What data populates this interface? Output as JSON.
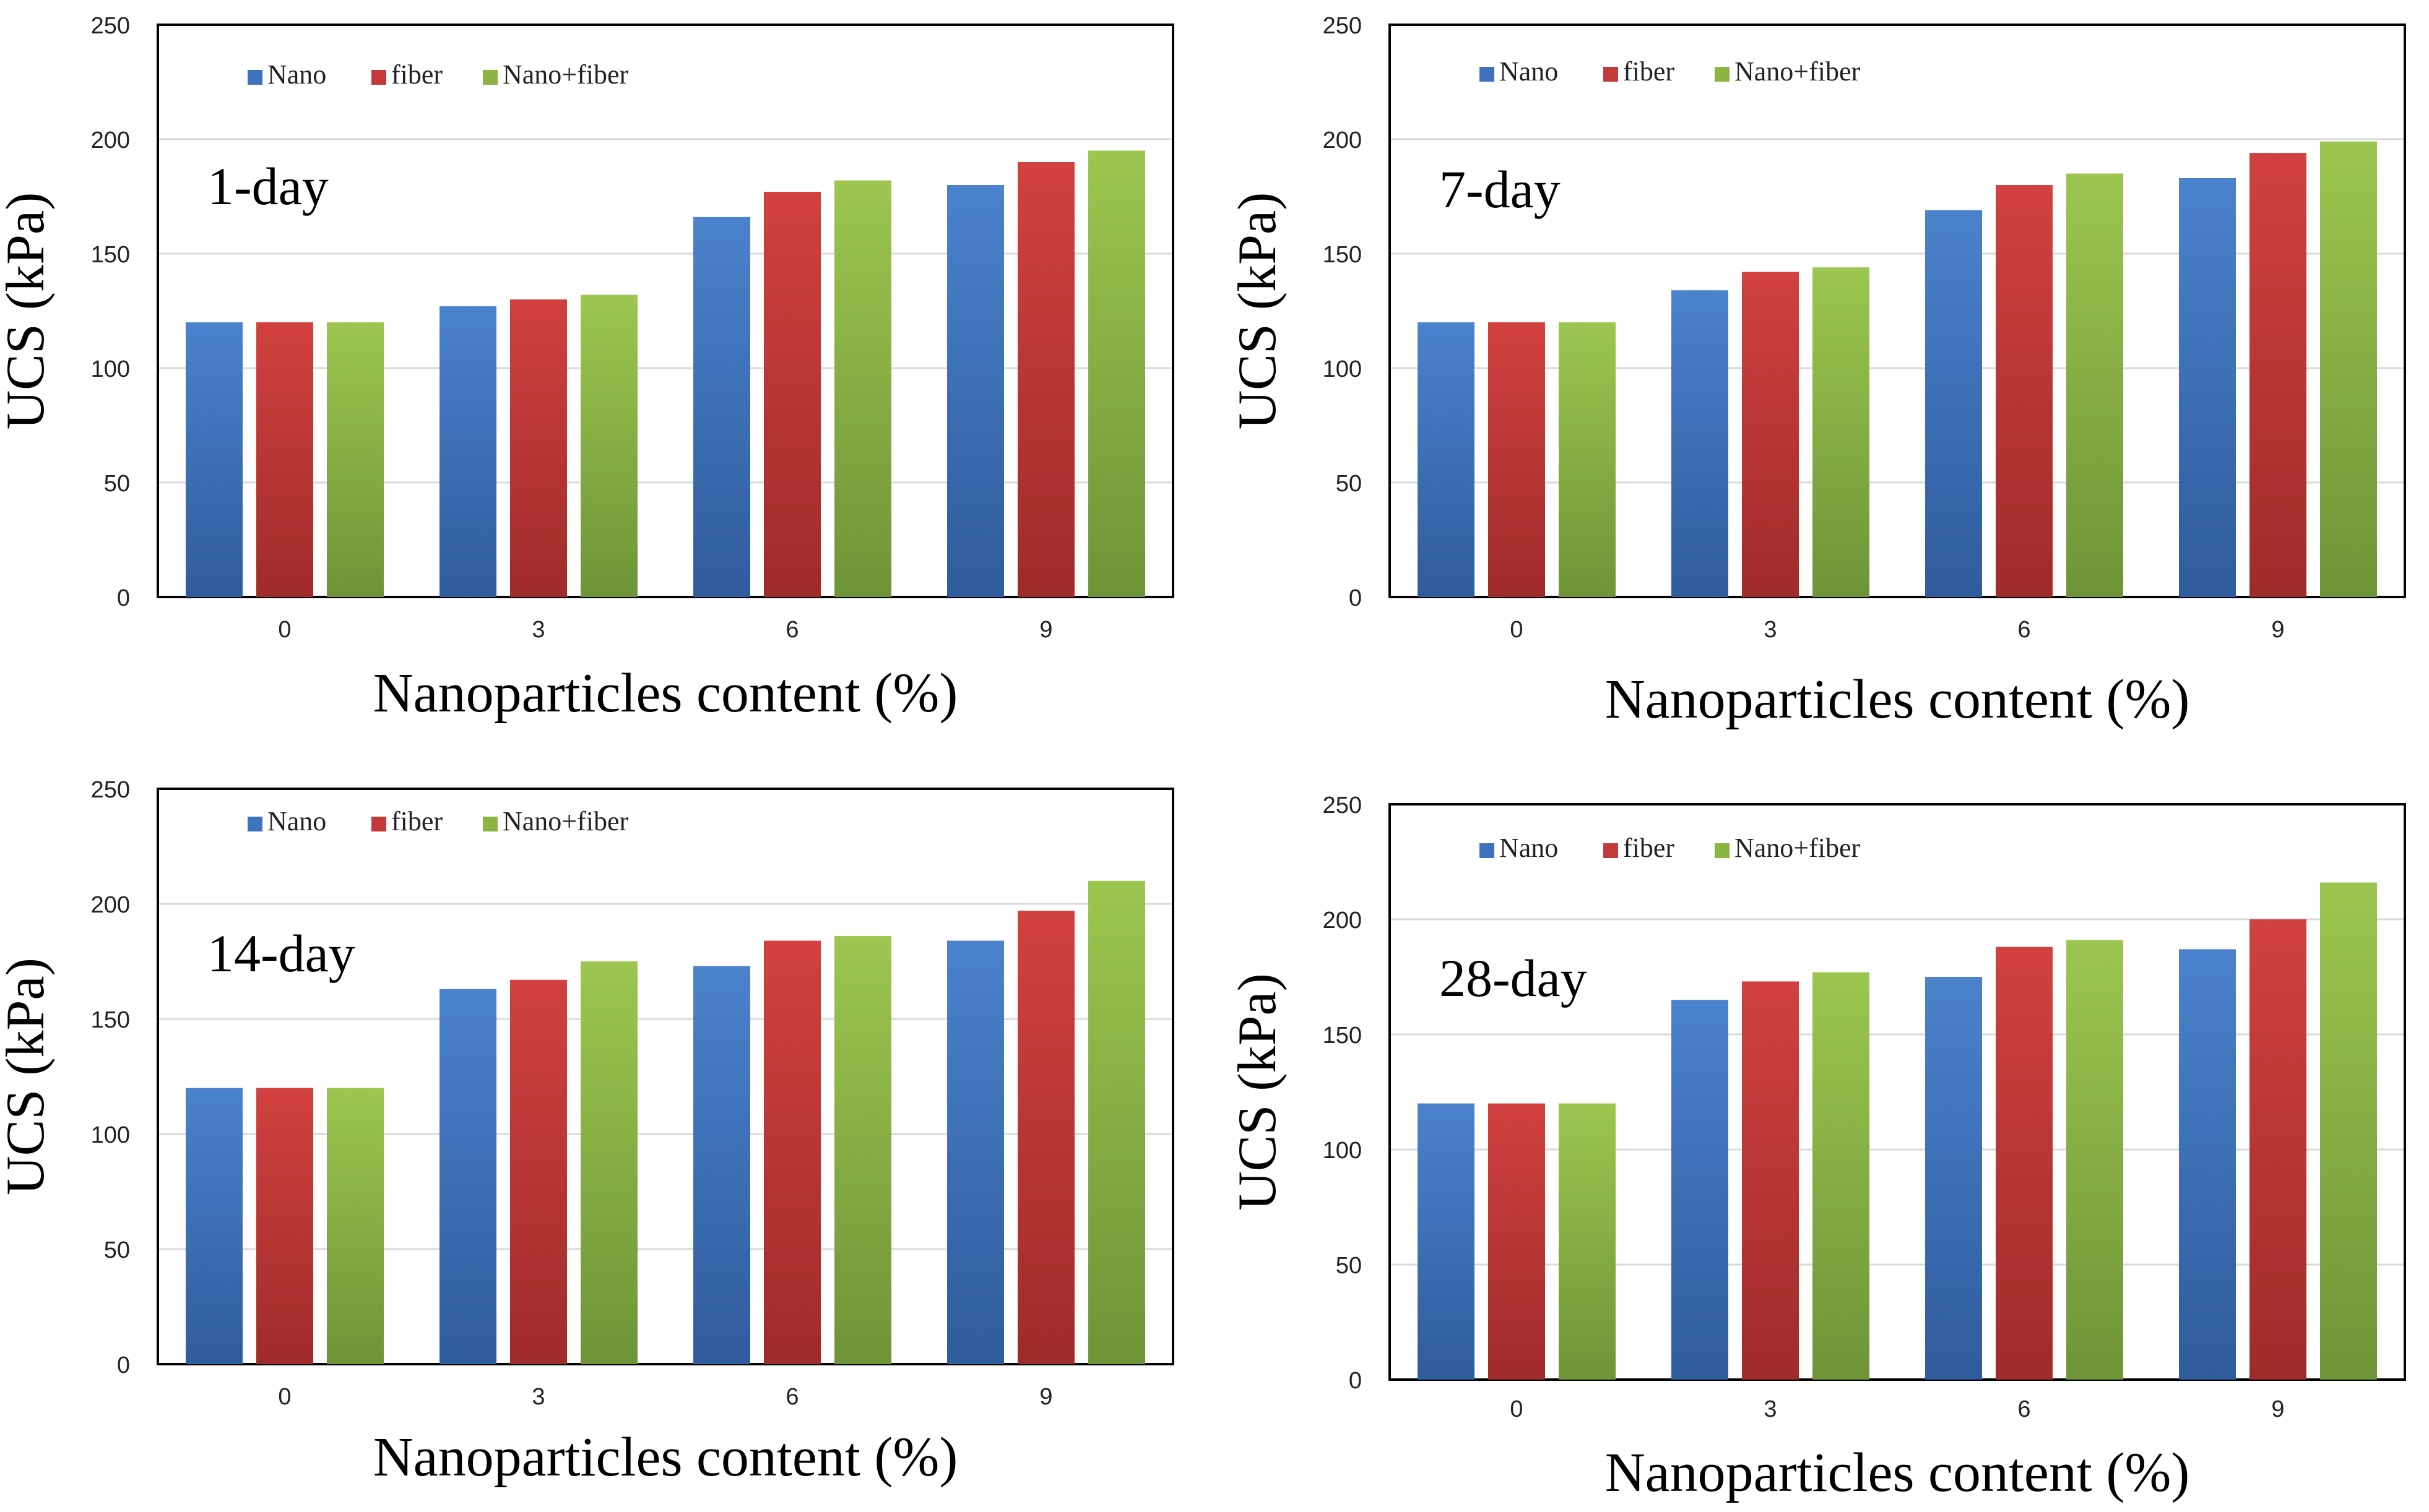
{
  "colors": {
    "Nano": "#3d72bd",
    "fiber": "#c33a38",
    "Nano+fiber": "#8cb443",
    "gridline": "#d9d9d9",
    "axis": "#000000"
  },
  "chart_data": [
    {
      "type": "bar",
      "annotation": "1-day",
      "categories": [
        "0",
        "3",
        "6",
        "9"
      ],
      "series": [
        {
          "name": "Nano",
          "values": [
            120,
            127,
            166,
            180
          ]
        },
        {
          "name": "fiber",
          "values": [
            120,
            130,
            177,
            190
          ]
        },
        {
          "name": "Nano+fiber",
          "values": [
            120,
            132,
            182,
            195
          ]
        }
      ],
      "xlabel": "Nanoparticles content (%)",
      "ylabel": "UCS (kPa)",
      "ylim": [
        0,
        250
      ],
      "yticks": [
        "0",
        "50",
        "100",
        "150",
        "200",
        "250"
      ],
      "grid": true,
      "legend": "top-left"
    },
    {
      "type": "bar",
      "annotation": "7-day",
      "categories": [
        "0",
        "3",
        "6",
        "9"
      ],
      "series": [
        {
          "name": "Nano",
          "values": [
            120,
            134,
            169,
            183
          ]
        },
        {
          "name": "fiber",
          "values": [
            120,
            142,
            180,
            194
          ]
        },
        {
          "name": "Nano+fiber",
          "values": [
            120,
            144,
            185,
            199
          ]
        }
      ],
      "xlabel": "Nanoparticles content (%)",
      "ylabel": "UCS (kPa)",
      "ylim": [
        0,
        250
      ],
      "yticks": [
        "0",
        "50",
        "100",
        "150",
        "200",
        "250"
      ],
      "grid": true,
      "legend": "top-left"
    },
    {
      "type": "bar",
      "annotation": "14-day",
      "categories": [
        "0",
        "3",
        "6",
        "9"
      ],
      "series": [
        {
          "name": "Nano",
          "values": [
            120,
            163,
            173,
            184
          ]
        },
        {
          "name": "fiber",
          "values": [
            120,
            167,
            184,
            197
          ]
        },
        {
          "name": "Nano+fiber",
          "values": [
            120,
            175,
            186,
            210
          ]
        }
      ],
      "xlabel": "Nanoparticles content (%)",
      "ylabel": "UCS (kPa)",
      "ylim": [
        0,
        250
      ],
      "yticks": [
        "0",
        "50",
        "100",
        "150",
        "200",
        "250"
      ],
      "grid": true,
      "legend": "top-left"
    },
    {
      "type": "bar",
      "annotation": "28-day",
      "categories": [
        "0",
        "3",
        "6",
        "9"
      ],
      "series": [
        {
          "name": "Nano",
          "values": [
            120,
            165,
            175,
            187
          ]
        },
        {
          "name": "fiber",
          "values": [
            120,
            173,
            188,
            200
          ]
        },
        {
          "name": "Nano+fiber",
          "values": [
            120,
            177,
            191,
            216
          ]
        }
      ],
      "xlabel": "Nanoparticles content (%)",
      "ylabel": "UCS (kPa)",
      "ylim": [
        0,
        250
      ],
      "yticks": [
        "0",
        "50",
        "100",
        "150",
        "200",
        "250"
      ],
      "grid": true,
      "legend": "top-left"
    }
  ]
}
